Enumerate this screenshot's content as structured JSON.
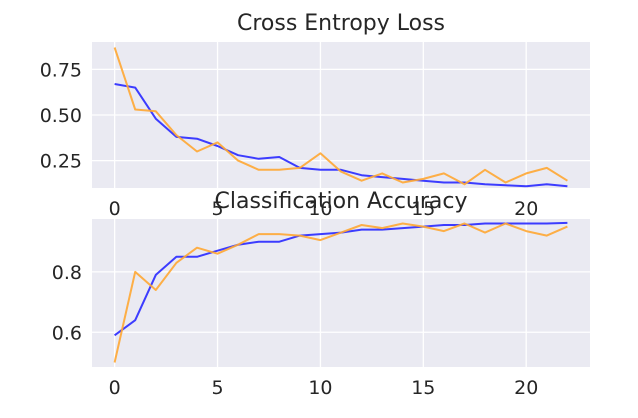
{
  "chart_data": [
    {
      "type": "line",
      "title": "Cross Entropy Loss",
      "xlim": [
        -1.1,
        23.1
      ],
      "ylim": [
        0.1,
        0.9
      ],
      "yticks": [
        0.25,
        0.5,
        0.75
      ],
      "ytick_labels": [
        "0.25",
        "0.50",
        "0.75"
      ],
      "xticks": [
        0,
        5,
        10,
        15,
        20
      ],
      "xtick_labels": [
        "0",
        "5",
        "10",
        "15",
        "20"
      ],
      "grid": true,
      "series": [
        {
          "color": "#3333ff",
          "x": [
            0,
            1,
            2,
            3,
            4,
            5,
            6,
            7,
            8,
            9,
            10,
            11,
            12,
            13,
            14,
            15,
            16,
            17,
            18,
            19,
            20,
            21,
            22
          ],
          "values": [
            0.67,
            0.65,
            0.48,
            0.38,
            0.37,
            0.33,
            0.28,
            0.26,
            0.27,
            0.21,
            0.2,
            0.2,
            0.17,
            0.16,
            0.15,
            0.14,
            0.13,
            0.13,
            0.12,
            0.115,
            0.11,
            0.12,
            0.11
          ]
        },
        {
          "color": "#ffa733",
          "x": [
            0,
            1,
            2,
            3,
            4,
            5,
            6,
            7,
            8,
            9,
            10,
            11,
            12,
            13,
            14,
            15,
            16,
            17,
            18,
            19,
            20,
            21,
            22
          ],
          "values": [
            0.87,
            0.53,
            0.52,
            0.39,
            0.3,
            0.35,
            0.25,
            0.2,
            0.2,
            0.21,
            0.29,
            0.19,
            0.14,
            0.18,
            0.13,
            0.15,
            0.18,
            0.12,
            0.2,
            0.13,
            0.18,
            0.21,
            0.14
          ]
        }
      ]
    },
    {
      "type": "line",
      "title": "Classification Accuracy",
      "xlim": [
        -1.1,
        23.1
      ],
      "ylim": [
        0.485,
        0.975
      ],
      "yticks": [
        0.6,
        0.8
      ],
      "ytick_labels": [
        "0.6",
        "0.8"
      ],
      "xticks": [
        0,
        5,
        10,
        15,
        20
      ],
      "xtick_labels": [
        "0",
        "5",
        "10",
        "15",
        "20"
      ],
      "grid": true,
      "series": [
        {
          "color": "#3333ff",
          "x": [
            0,
            1,
            2,
            3,
            4,
            5,
            6,
            7,
            8,
            9,
            10,
            11,
            12,
            13,
            14,
            15,
            16,
            17,
            18,
            19,
            20,
            21,
            22
          ],
          "values": [
            0.59,
            0.64,
            0.79,
            0.85,
            0.85,
            0.87,
            0.89,
            0.9,
            0.9,
            0.92,
            0.925,
            0.93,
            0.94,
            0.94,
            0.945,
            0.95,
            0.955,
            0.955,
            0.96,
            0.96,
            0.96,
            0.96,
            0.962
          ]
        },
        {
          "color": "#ffa733",
          "x": [
            0,
            1,
            2,
            3,
            4,
            5,
            6,
            7,
            8,
            9,
            10,
            11,
            12,
            13,
            14,
            15,
            16,
            17,
            18,
            19,
            20,
            21,
            22
          ],
          "values": [
            0.5,
            0.8,
            0.74,
            0.83,
            0.88,
            0.86,
            0.89,
            0.925,
            0.925,
            0.92,
            0.905,
            0.93,
            0.955,
            0.945,
            0.96,
            0.95,
            0.935,
            0.96,
            0.93,
            0.96,
            0.935,
            0.92,
            0.95
          ]
        }
      ]
    }
  ]
}
